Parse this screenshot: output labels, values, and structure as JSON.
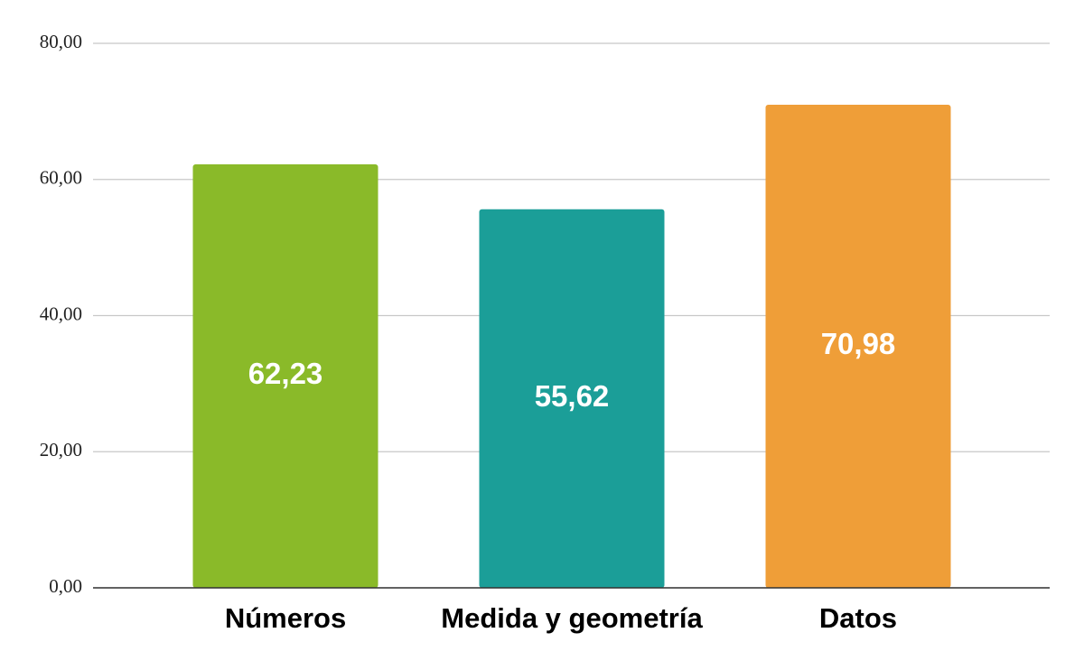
{
  "chart_data": {
    "type": "bar",
    "categories": [
      "Números",
      "Medida y geometría",
      "Datos"
    ],
    "values": [
      62.23,
      55.62,
      70.98
    ],
    "value_labels": [
      "62,23",
      "55,62",
      "70,98"
    ],
    "colors": [
      "#8aba29",
      "#1b9e98",
      "#ef9e38"
    ],
    "ylim": [
      0,
      80
    ],
    "yticks": [
      {
        "value": 0,
        "label": "0,00"
      },
      {
        "value": 20,
        "label": "20,00"
      },
      {
        "value": 40,
        "label": "40,00"
      },
      {
        "value": 60,
        "label": "60,00"
      },
      {
        "value": 80,
        "label": "80,00"
      }
    ],
    "grid": true
  }
}
